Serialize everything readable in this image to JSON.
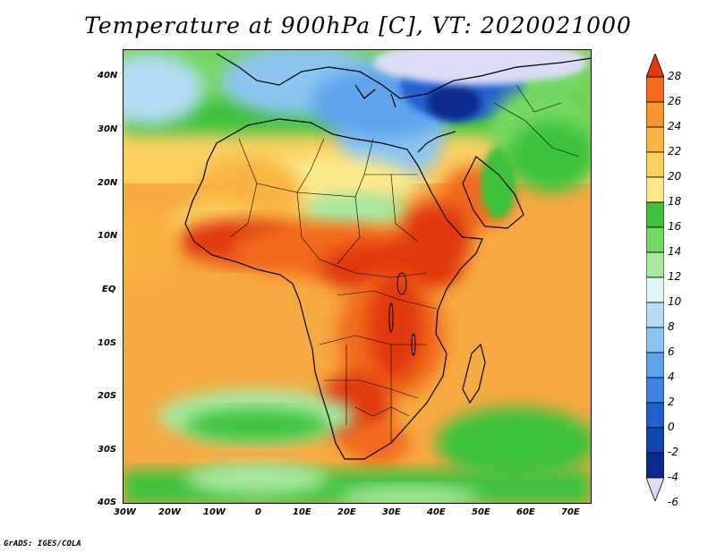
{
  "title": "Temperature at 900hPa [C], VT: 2020021000",
  "credit": "GrADS: IGES/COLA",
  "lat_labels": [
    "40N",
    "30N",
    "20N",
    "10N",
    "EQ",
    "10S",
    "20S",
    "30S",
    "40S"
  ],
  "lon_labels": [
    "30W",
    "20W",
    "10W",
    "0",
    "10E",
    "20E",
    "30E",
    "40E",
    "50E",
    "60E",
    "70E"
  ],
  "colorbar": {
    "labels": [
      "28",
      "26",
      "24",
      "22",
      "20",
      "18",
      "16",
      "14",
      "12",
      "10",
      "8",
      "6",
      "4",
      "2",
      "0",
      "-2",
      "-4",
      "-6"
    ],
    "colors": [
      "#e0380c",
      "#f26b1e",
      "#f6962f",
      "#f9b441",
      "#fbd061",
      "#fde98b",
      "#3cc23c",
      "#74d864",
      "#a8e8a0",
      "#e0f6f4",
      "#b4dcf6",
      "#8cc4f2",
      "#5ea4ec",
      "#3e82e4",
      "#2260d0",
      "#1246b4",
      "#0a2a8c",
      "#dcdcf8"
    ]
  },
  "map_domain": {
    "lon_range": [
      -30,
      75
    ],
    "lat_range": [
      -40,
      45
    ]
  }
}
